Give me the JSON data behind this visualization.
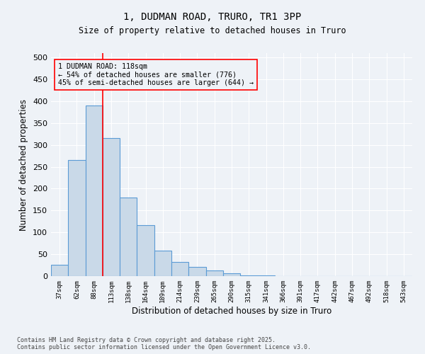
{
  "title_line1": "1, DUDMAN ROAD, TRURO, TR1 3PP",
  "title_line2": "Size of property relative to detached houses in Truro",
  "xlabel": "Distribution of detached houses by size in Truro",
  "ylabel": "Number of detached properties",
  "categories": [
    "37sqm",
    "62sqm",
    "88sqm",
    "113sqm",
    "138sqm",
    "164sqm",
    "189sqm",
    "214sqm",
    "239sqm",
    "265sqm",
    "290sqm",
    "315sqm",
    "341sqm",
    "366sqm",
    "391sqm",
    "417sqm",
    "442sqm",
    "467sqm",
    "492sqm",
    "518sqm",
    "543sqm"
  ],
  "bar_values": [
    26,
    265,
    390,
    315,
    180,
    117,
    58,
    32,
    21,
    13,
    7,
    2,
    1,
    0,
    0,
    0,
    0,
    0,
    0,
    0,
    0
  ],
  "bar_color": "#c9d9e8",
  "bar_edgecolor": "#5b9bd5",
  "vline_color": "red",
  "annotation_text": "1 DUDMAN ROAD: 118sqm\n← 54% of detached houses are smaller (776)\n45% of semi-detached houses are larger (644) →",
  "annotation_box_color": "red",
  "ylim": [
    0,
    510
  ],
  "yticks": [
    0,
    50,
    100,
    150,
    200,
    250,
    300,
    350,
    400,
    450,
    500
  ],
  "background_color": "#eef2f7",
  "grid_color": "white",
  "footer": "Contains HM Land Registry data © Crown copyright and database right 2025.\nContains public sector information licensed under the Open Government Licence v3.0."
}
